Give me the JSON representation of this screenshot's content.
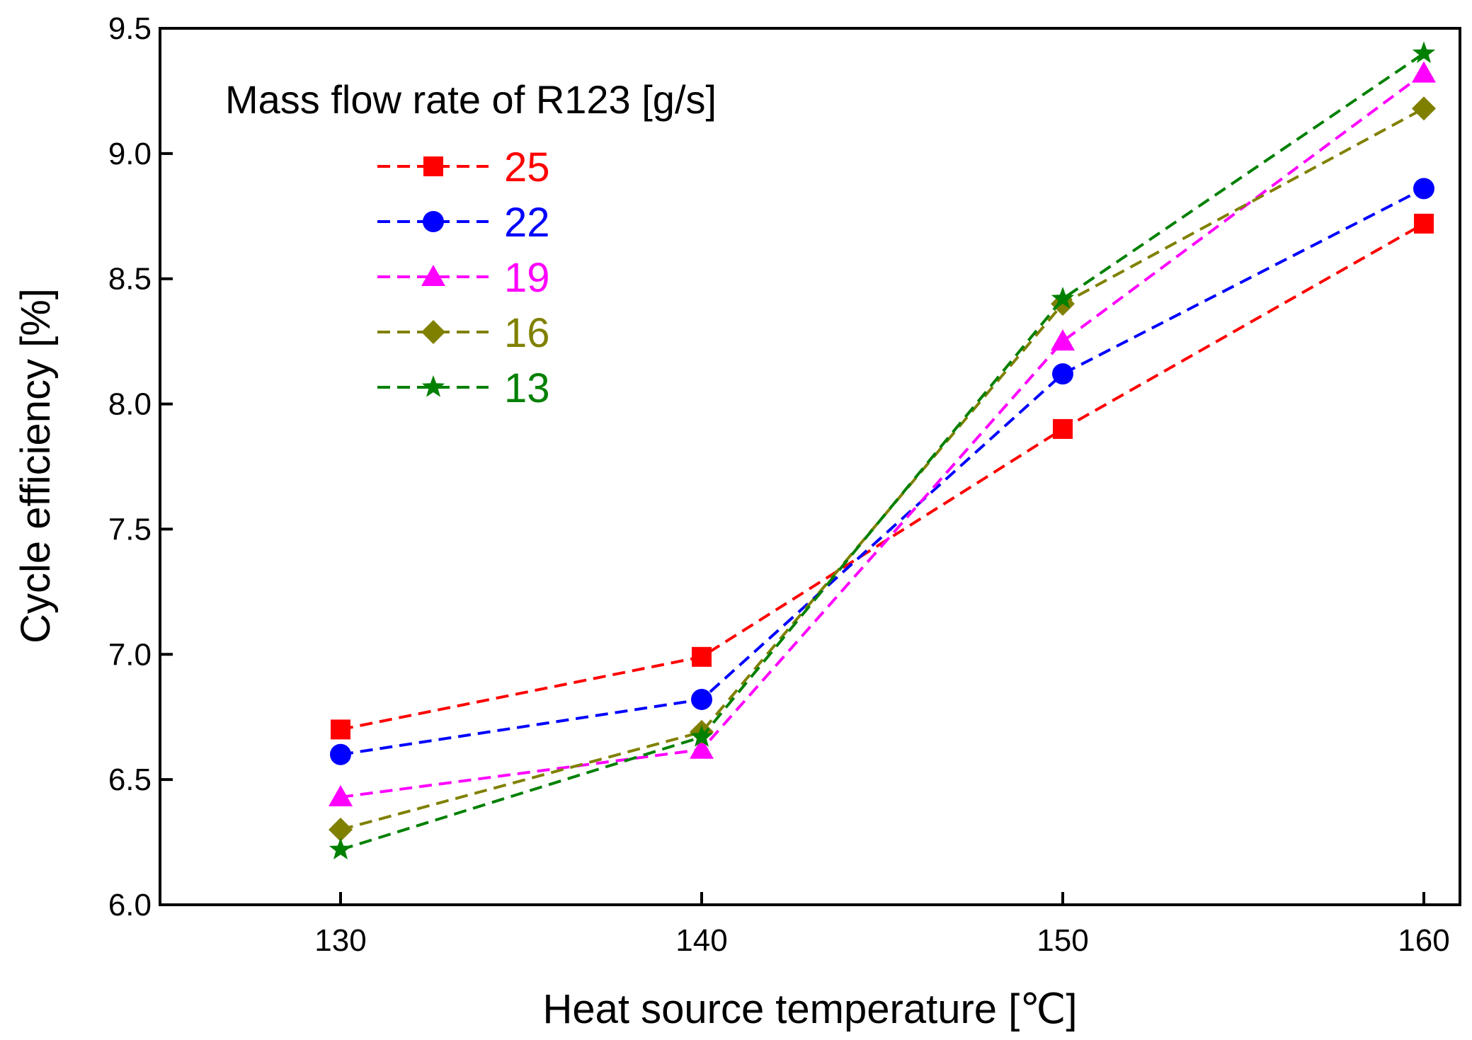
{
  "chart_data": {
    "type": "line",
    "xlabel": "Heat source temperature [℃]",
    "ylabel": "Cycle efficiency [%]",
    "xlim": [
      125,
      161
    ],
    "ylim": [
      6.0,
      9.5
    ],
    "xticks": [
      130,
      140,
      150,
      160
    ],
    "yticks": [
      6.0,
      6.5,
      7.0,
      7.5,
      8.0,
      8.5,
      9.0,
      9.5
    ],
    "x": [
      130,
      140,
      150,
      160
    ],
    "legend": {
      "title": "Mass flow rate of R123 [g/s]",
      "placement": "top-left"
    },
    "series": [
      {
        "name": "25",
        "color": "#ff0000",
        "marker": "square",
        "values": [
          6.7,
          6.99,
          7.9,
          8.72
        ]
      },
      {
        "name": "22",
        "color": "#0000ff",
        "marker": "circle",
        "values": [
          6.6,
          6.82,
          8.12,
          8.86
        ]
      },
      {
        "name": "19",
        "color": "#ff00ff",
        "marker": "triangle",
        "values": [
          6.43,
          6.62,
          8.25,
          9.32
        ]
      },
      {
        "name": "16",
        "color": "#808000",
        "marker": "diamond",
        "values": [
          6.3,
          6.69,
          8.4,
          9.18
        ]
      },
      {
        "name": "13",
        "color": "#008000",
        "marker": "star",
        "values": [
          6.22,
          6.67,
          8.42,
          9.4
        ]
      }
    ],
    "grid": false
  }
}
